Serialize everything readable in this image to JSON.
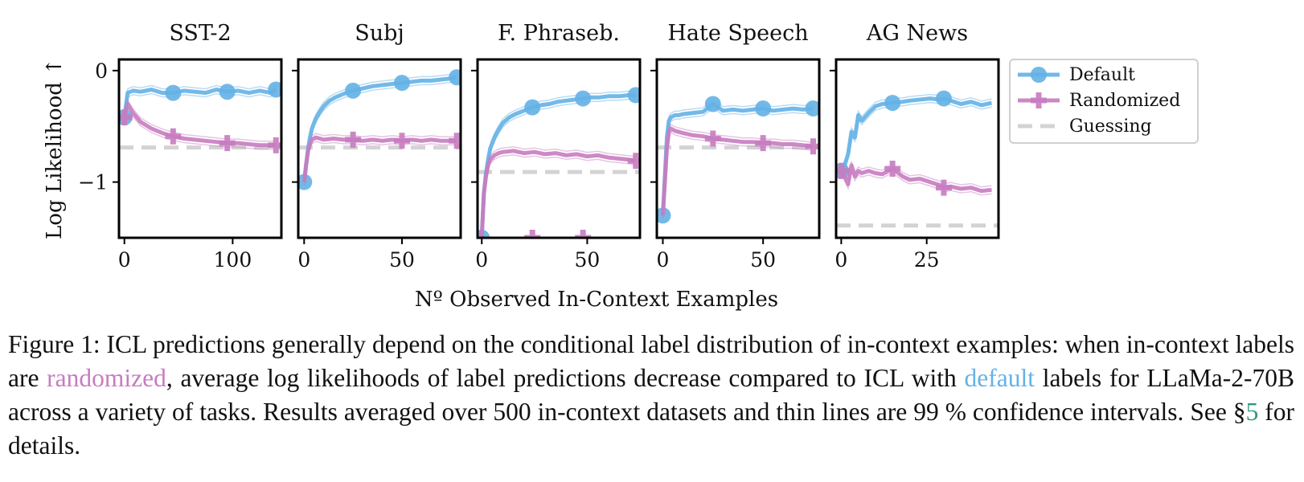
{
  "chart_data": {
    "type": "line",
    "ylabel": "Log Likelihood ↑",
    "xlabel": "Nº Observed In-Context Examples",
    "ylim": [
      -1.5,
      0.1
    ],
    "yticks": [
      0,
      -1
    ],
    "ytick_labels": [
      "0",
      "−1"
    ],
    "legend": {
      "placement": "right",
      "entries": [
        {
          "label": "Default",
          "color": "#64b1e6",
          "marker": "circle",
          "style": "solid"
        },
        {
          "label": "Randomized",
          "color": "#c77cc0",
          "marker": "plus",
          "style": "solid"
        },
        {
          "label": "Guessing",
          "color": "#d3d3d3",
          "marker": "none",
          "style": "dashed"
        }
      ]
    },
    "colors": {
      "default": "#64b1e6",
      "randomized": "#c77cc0",
      "guessing": "#d3d3d3"
    },
    "panels": [
      {
        "title": "SST-2",
        "xlim": [
          -5,
          145
        ],
        "xticks": [
          0,
          100
        ],
        "xtick_labels": [
          "0",
          "100"
        ],
        "guessing": -0.69,
        "series": [
          {
            "name": "Default",
            "x": [
              0,
              3,
              8,
              15,
              25,
              35,
              45,
              55,
              65,
              75,
              85,
              95,
              105,
              115,
              125,
              135,
              140
            ],
            "y": [
              -0.42,
              -0.2,
              -0.18,
              -0.19,
              -0.17,
              -0.2,
              -0.2,
              -0.18,
              -0.19,
              -0.2,
              -0.17,
              -0.19,
              -0.18,
              -0.2,
              -0.18,
              -0.2,
              -0.17
            ],
            "markers_at": [
              0,
              45,
              95,
              140
            ]
          },
          {
            "name": "Randomized",
            "x": [
              0,
              3,
              8,
              15,
              25,
              35,
              45,
              55,
              65,
              75,
              85,
              95,
              105,
              115,
              125,
              135,
              140
            ],
            "y": [
              -0.42,
              -0.3,
              -0.38,
              -0.46,
              -0.52,
              -0.56,
              -0.59,
              -0.61,
              -0.62,
              -0.63,
              -0.64,
              -0.65,
              -0.65,
              -0.66,
              -0.67,
              -0.67,
              -0.67
            ],
            "markers_at": [
              0,
              45,
              95,
              140
            ]
          }
        ]
      },
      {
        "title": "Subj",
        "xlim": [
          -3,
          80
        ],
        "xticks": [
          0,
          50
        ],
        "xtick_labels": [
          "0",
          "50"
        ],
        "guessing": -0.69,
        "series": [
          {
            "name": "Default",
            "x": [
              0,
              1,
              2,
              3,
              4,
              6,
              8,
              10,
              13,
              16,
              20,
              25,
              30,
              35,
              40,
              45,
              50,
              55,
              60,
              65,
              70,
              75,
              78
            ],
            "y": [
              -1.0,
              -0.85,
              -0.7,
              -0.6,
              -0.52,
              -0.43,
              -0.37,
              -0.32,
              -0.27,
              -0.24,
              -0.21,
              -0.18,
              -0.16,
              -0.14,
              -0.13,
              -0.12,
              -0.11,
              -0.1,
              -0.09,
              -0.09,
              -0.08,
              -0.07,
              -0.06
            ],
            "markers_at": [
              0,
              25,
              50,
              78
            ]
          },
          {
            "name": "Randomized",
            "x": [
              0,
              1,
              2,
              3,
              4,
              6,
              8,
              10,
              15,
              20,
              25,
              30,
              35,
              40,
              45,
              50,
              55,
              60,
              65,
              70,
              75,
              78
            ],
            "y": [
              -1.0,
              -0.85,
              -0.72,
              -0.66,
              -0.62,
              -0.6,
              -0.61,
              -0.62,
              -0.61,
              -0.62,
              -0.62,
              -0.63,
              -0.62,
              -0.63,
              -0.62,
              -0.63,
              -0.62,
              -0.63,
              -0.62,
              -0.63,
              -0.63,
              -0.63
            ],
            "markers_at": [
              25,
              50,
              78
            ]
          }
        ]
      },
      {
        "title": "F. Phraseb.",
        "xlim": [
          -2,
          75
        ],
        "xticks": [
          0,
          50
        ],
        "xtick_labels": [
          "0",
          "50"
        ],
        "guessing": -0.91,
        "series": [
          {
            "name": "Default",
            "x": [
              0,
              1,
              2,
              3,
              4,
              6,
              8,
              10,
              13,
              16,
              20,
              24,
              28,
              32,
              36,
              40,
              44,
              48,
              52,
              56,
              60,
              65,
              70,
              73
            ],
            "y": [
              -1.5,
              -1.1,
              -0.92,
              -0.8,
              -0.7,
              -0.6,
              -0.53,
              -0.47,
              -0.42,
              -0.39,
              -0.36,
              -0.33,
              -0.31,
              -0.3,
              -0.28,
              -0.27,
              -0.26,
              -0.25,
              -0.24,
              -0.24,
              -0.23,
              -0.23,
              -0.22,
              -0.22
            ],
            "markers_at": [
              0,
              24,
              48,
              73
            ]
          },
          {
            "name": "Randomized",
            "x": [
              0,
              1,
              2,
              3,
              4,
              6,
              8,
              10,
              15,
              20,
              25,
              30,
              35,
              40,
              45,
              50,
              55,
              60,
              65,
              70,
              73
            ],
            "y": [
              -1.5,
              -1.1,
              -0.95,
              -0.85,
              -0.8,
              -0.76,
              -0.74,
              -0.73,
              -0.72,
              -0.74,
              -0.73,
              -0.75,
              -0.74,
              -0.76,
              -0.75,
              -0.77,
              -0.76,
              -0.78,
              -0.79,
              -0.8,
              -0.81
            ],
            "markers_at": [
              24,
              48,
              73
            ]
          }
        ]
      },
      {
        "title": "Hate Speech",
        "xlim": [
          -3,
          78
        ],
        "xticks": [
          0,
          50
        ],
        "xtick_labels": [
          "0",
          "50"
        ],
        "guessing": -0.69,
        "series": [
          {
            "name": "Default",
            "x": [
              0,
              1,
              2,
              3,
              4,
              6,
              8,
              10,
              15,
              20,
              25,
              30,
              35,
              40,
              45,
              50,
              55,
              60,
              65,
              70,
              75
            ],
            "y": [
              -1.3,
              -0.95,
              -0.6,
              -0.45,
              -0.42,
              -0.4,
              -0.4,
              -0.39,
              -0.38,
              -0.37,
              -0.3,
              -0.36,
              -0.35,
              -0.36,
              -0.35,
              -0.34,
              -0.36,
              -0.35,
              -0.34,
              -0.35,
              -0.34
            ],
            "markers_at": [
              0,
              25,
              50,
              75
            ]
          },
          {
            "name": "Randomized",
            "x": [
              0,
              1,
              2,
              3,
              4,
              6,
              8,
              10,
              15,
              20,
              25,
              30,
              35,
              40,
              45,
              50,
              55,
              60,
              65,
              70,
              75
            ],
            "y": [
              -1.3,
              -1.0,
              -0.7,
              -0.55,
              -0.52,
              -0.54,
              -0.55,
              -0.56,
              -0.58,
              -0.59,
              -0.61,
              -0.62,
              -0.63,
              -0.64,
              -0.64,
              -0.65,
              -0.65,
              -0.66,
              -0.66,
              -0.67,
              -0.68
            ],
            "markers_at": [
              25,
              50,
              75
            ]
          }
        ]
      },
      {
        "title": "AG News",
        "xlim": [
          -1.5,
          46
        ],
        "xticks": [
          0,
          25
        ],
        "xtick_labels": [
          "0",
          "25"
        ],
        "guessing": -1.39,
        "series": [
          {
            "name": "Default",
            "x": [
              0,
              1,
              2,
              3,
              4,
              5,
              6,
              8,
              10,
              12,
              15,
              18,
              20,
              23,
              26,
              29,
              30,
              32,
              35,
              38,
              41,
              44
            ],
            "y": [
              -0.9,
              -0.85,
              -0.75,
              -0.55,
              -0.6,
              -0.4,
              -0.45,
              -0.38,
              -0.32,
              -0.3,
              -0.29,
              -0.28,
              -0.27,
              -0.26,
              -0.25,
              -0.26,
              -0.25,
              -0.27,
              -0.3,
              -0.28,
              -0.31,
              -0.29
            ],
            "markers_at": [
              0,
              15,
              30
            ]
          },
          {
            "name": "Randomized",
            "x": [
              0,
              1,
              2,
              3,
              4,
              5,
              6,
              8,
              10,
              12,
              15,
              18,
              20,
              23,
              26,
              29,
              30,
              32,
              35,
              38,
              41,
              44
            ],
            "y": [
              -0.9,
              -0.95,
              -1.02,
              -0.85,
              -0.95,
              -0.9,
              -0.92,
              -0.9,
              -0.92,
              -0.93,
              -0.88,
              -0.95,
              -0.98,
              -0.97,
              -1.0,
              -1.03,
              -1.05,
              -1.04,
              -1.06,
              -1.05,
              -1.08,
              -1.07
            ],
            "markers_at": [
              0,
              15,
              30
            ]
          }
        ]
      }
    ]
  },
  "caption": {
    "part1": "Figure 1: ICL predictions generally depend on the conditional label distribution of in-context examples: when in-context labels are ",
    "randomized": "randomized",
    "part2": ", average log likelihoods of label predictions decrease compared to ICL with ",
    "default": "default",
    "part3": " labels for LLaMa-2-70B across a variety of tasks. Results averaged over 500 in-context datasets and thin lines are 99 % confidence intervals. See §",
    "ref": "5",
    "part4": " for details."
  }
}
